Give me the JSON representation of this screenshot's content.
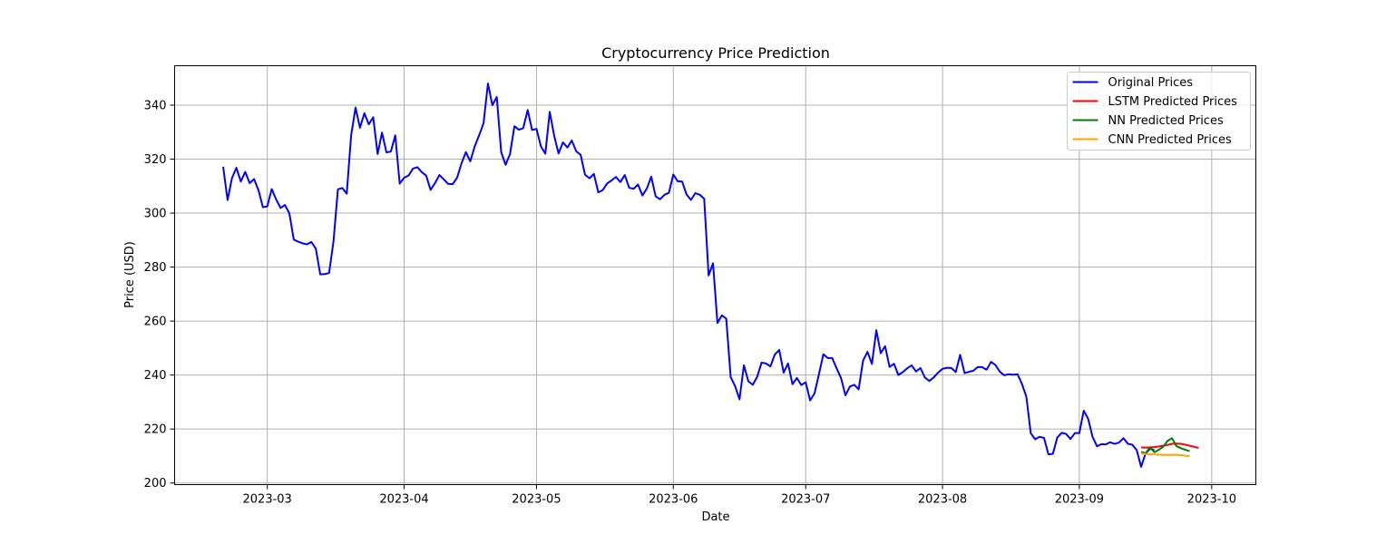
{
  "chart_data": {
    "type": "line",
    "title": "Cryptocurrency Price Prediction",
    "xlabel": "Date",
    "ylabel": "Price (USD)",
    "grid": true,
    "legend_position": "top-right",
    "x_range": [
      "2023-02-08",
      "2023-10-11"
    ],
    "ylim": [
      199.4,
      354.6
    ],
    "x_ticks": [
      {
        "date": "2023-03-01",
        "label": "2023-03"
      },
      {
        "date": "2023-04-01",
        "label": "2023-04"
      },
      {
        "date": "2023-05-01",
        "label": "2023-05"
      },
      {
        "date": "2023-06-01",
        "label": "2023-06"
      },
      {
        "date": "2023-07-01",
        "label": "2023-07"
      },
      {
        "date": "2023-08-01",
        "label": "2023-08"
      },
      {
        "date": "2023-09-01",
        "label": "2023-09"
      },
      {
        "date": "2023-10-01",
        "label": "2023-10"
      }
    ],
    "y_ticks": [
      {
        "value": 200,
        "label": "200"
      },
      {
        "value": 220,
        "label": "220"
      },
      {
        "value": 240,
        "label": "240"
      },
      {
        "value": 260,
        "label": "260"
      },
      {
        "value": 280,
        "label": "280"
      },
      {
        "value": 300,
        "label": "300"
      },
      {
        "value": 320,
        "label": "320"
      },
      {
        "value": 340,
        "label": "340"
      }
    ],
    "series": [
      {
        "name": "Original Prices",
        "color": "#0000ff",
        "start_date": "2023-02-19",
        "values": [
          317.2,
          304.8,
          313.0,
          316.8,
          311.7,
          315.3,
          311.1,
          312.6,
          308.5,
          302.2,
          302.5,
          308.9,
          305.1,
          301.9,
          303.0,
          299.9,
          290.2,
          289.4,
          288.8,
          288.4,
          289.3,
          286.8,
          277.3,
          277.4,
          277.8,
          289.5,
          308.8,
          309.3,
          307.2,
          328.8,
          339.1,
          331.6,
          337.0,
          332.9,
          335.5,
          321.9,
          329.8,
          322.5,
          322.8,
          328.8,
          310.9,
          313.1,
          313.9,
          316.5,
          317.0,
          315.2,
          313.9,
          308.6,
          311.1,
          314.1,
          312.5,
          310.8,
          310.7,
          313.1,
          318.4,
          322.6,
          319.2,
          324.7,
          328.8,
          333.3,
          348.0,
          340.0,
          343.0,
          322.6,
          317.9,
          321.9,
          332.2,
          330.9,
          331.5,
          338.2,
          330.8,
          331.2,
          324.7,
          322.0,
          337.5,
          328.7,
          322.1,
          326.2,
          324.3,
          326.9,
          322.9,
          321.6,
          314.2,
          312.9,
          314.5,
          307.7,
          308.5,
          311.0,
          312.1,
          313.4,
          311.5,
          314.1,
          309.4,
          309.0,
          310.6,
          306.5,
          309.1,
          313.5,
          306.2,
          305.1,
          306.8,
          307.5,
          314.3,
          311.8,
          311.7,
          306.9,
          304.9,
          307.4,
          306.8,
          305.3,
          276.9,
          281.4,
          259.3,
          262.1,
          260.9,
          239.2,
          235.9,
          231.0,
          243.6,
          237.7,
          236.4,
          239.3,
          244.6,
          244.3,
          243.2,
          247.6,
          249.3,
          240.9,
          244.3,
          236.6,
          238.9,
          236.3,
          237.3,
          230.6,
          233.2,
          240.3,
          247.7,
          246.3,
          246.3,
          242.5,
          238.9,
          232.5,
          235.7,
          236.4,
          234.7,
          245.4,
          248.6,
          244.1,
          256.6,
          248.1,
          250.7,
          243.0,
          244.2,
          240.0,
          241.1,
          242.5,
          243.6,
          241.3,
          242.6,
          239.1,
          237.8,
          239.1,
          240.9,
          242.3,
          242.7,
          242.6,
          241.1,
          247.5,
          240.7,
          241.2,
          241.6,
          243.0,
          242.9,
          242.0,
          244.9,
          243.7,
          241.2,
          239.9,
          240.3,
          240.1,
          240.3,
          236.7,
          231.9,
          218.4,
          216.2,
          217.1,
          216.7,
          210.6,
          210.8,
          216.8,
          218.6,
          218.2,
          216.3,
          218.5,
          218.5,
          226.8,
          223.8,
          217.1,
          213.6,
          214.4,
          214.3,
          215.1,
          214.5,
          215.0,
          216.6,
          214.5,
          214.2,
          212.2,
          206.0,
          210.9,
          212.7,
          212.2
        ]
      },
      {
        "name": "LSTM Predicted Prices",
        "color": "#ff0000",
        "start_date": "2023-09-15",
        "values": [
          213.2,
          213.1,
          213.2,
          213.3,
          213.5,
          213.8,
          214.1,
          214.5,
          214.6,
          214.5,
          214.2,
          213.8,
          213.4,
          213.0
        ]
      },
      {
        "name": "NN Predicted Prices",
        "color": "#008000",
        "start_date": "2023-09-15",
        "values": [
          211.5,
          211.0,
          213.2,
          211.4,
          212.3,
          213.4,
          215.6,
          216.6,
          213.7,
          212.9,
          212.3,
          211.8
        ]
      },
      {
        "name": "CNN Predicted Prices",
        "color": "#ffa500",
        "start_date": "2023-09-15",
        "values": [
          211.0,
          210.7,
          210.7,
          210.6,
          210.5,
          210.4,
          210.4,
          210.4,
          210.5,
          210.3,
          210.1,
          210.0
        ]
      }
    ]
  }
}
